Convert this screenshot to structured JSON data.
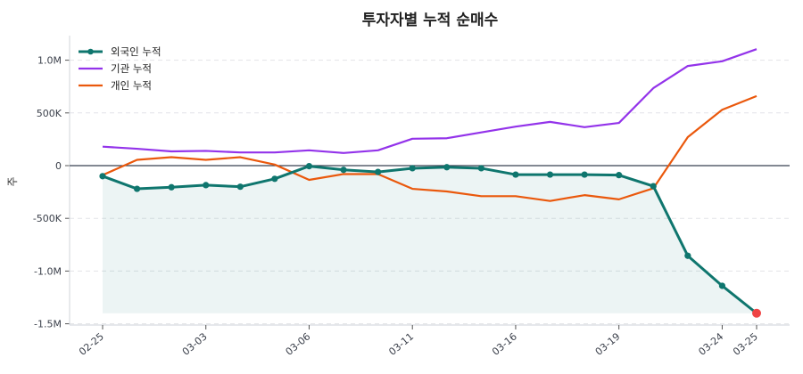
{
  "chart_data": {
    "type": "line",
    "title": "투자자별 누적 순매수",
    "xlabel": "",
    "ylabel": "주",
    "ylim": [
      -1500000,
      1200000
    ],
    "yticks": [
      -1500000,
      -1000000,
      -500000,
      0,
      500000,
      1000000
    ],
    "ytick_labels": [
      "-1.5M",
      "-1.0M",
      "-500K",
      "0",
      "500K",
      "1.0M"
    ],
    "xtick_labels": [
      {
        "label": "02-25",
        "index": 0
      },
      {
        "label": "03-03",
        "index": 3
      },
      {
        "label": "03-06",
        "index": 6
      },
      {
        "label": "03-11",
        "index": 9
      },
      {
        "label": "03-16",
        "index": 12
      },
      {
        "label": "03-19",
        "index": 15
      },
      {
        "label": "03-24",
        "index": 18
      },
      {
        "label": "03-25",
        "index": 19
      }
    ],
    "grid": "horizontal dashed",
    "legend_position": "upper left",
    "x_count": 20,
    "series": [
      {
        "name": "외국인 누적",
        "color": "#0f766e",
        "marker": "circle",
        "fill_to_min": true,
        "fill_color": "#0f766e",
        "last_point_color": "#ef4444",
        "values": [
          -100000,
          -220000,
          -205000,
          -185000,
          -200000,
          -125000,
          -5000,
          -40000,
          -60000,
          -25000,
          -15000,
          -25000,
          -85000,
          -85000,
          -85000,
          -90000,
          -195000,
          -855000,
          -1140000,
          -1400000
        ]
      },
      {
        "name": "기관 누적",
        "color": "#9333ea",
        "marker": "none",
        "values": [
          180000,
          160000,
          135000,
          140000,
          125000,
          125000,
          145000,
          120000,
          145000,
          255000,
          260000,
          315000,
          370000,
          415000,
          365000,
          405000,
          735000,
          945000,
          990000,
          1105000
        ]
      },
      {
        "name": "개인 누적",
        "color": "#ea580c",
        "marker": "none",
        "values": [
          -90000,
          55000,
          80000,
          55000,
          80000,
          10000,
          -135000,
          -80000,
          -80000,
          -220000,
          -245000,
          -290000,
          -290000,
          -335000,
          -280000,
          -320000,
          -215000,
          270000,
          530000,
          660000
        ]
      }
    ]
  }
}
